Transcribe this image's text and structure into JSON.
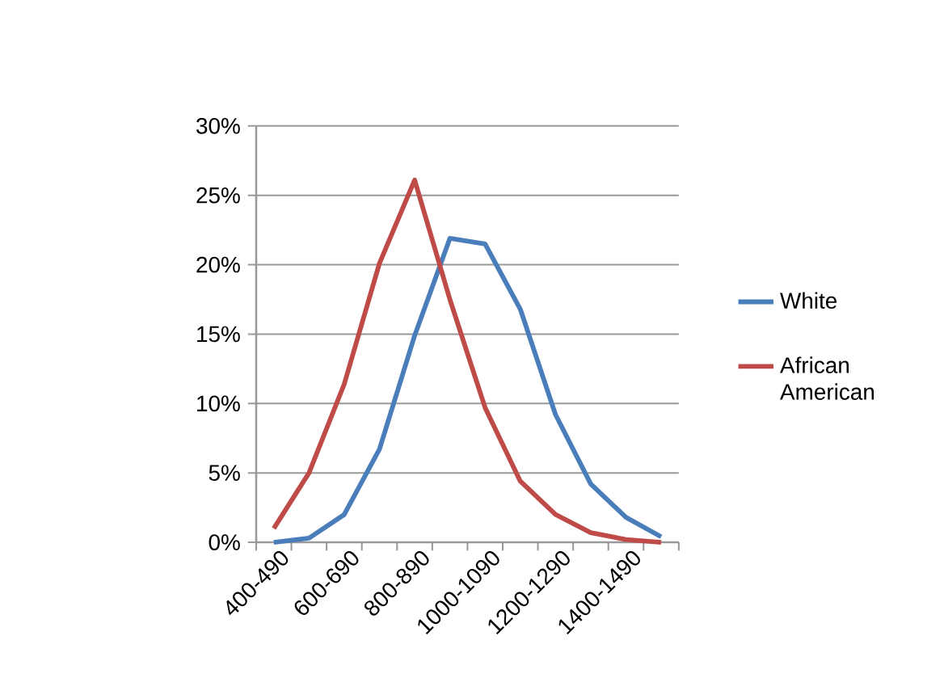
{
  "chart_data": {
    "type": "line",
    "categories": [
      "400-490",
      null,
      "600-690",
      null,
      "800-890",
      null,
      "1000-1090",
      null,
      "1200-1290",
      null,
      "1400-1490",
      null
    ],
    "series": [
      {
        "name": "White",
        "color": "#4a7ebb",
        "values": [
          0.0,
          0.3,
          2.0,
          6.7,
          14.9,
          21.9,
          21.5,
          16.8,
          9.2,
          4.2,
          1.8,
          0.4
        ]
      },
      {
        "name": "African American",
        "color": "#be4b48",
        "values": [
          1.0,
          5.0,
          11.4,
          20.1,
          26.1,
          17.5,
          9.7,
          4.4,
          2.0,
          0.7,
          0.2,
          0.0
        ]
      }
    ],
    "ylim": [
      0,
      30
    ],
    "yticks": [
      {
        "value": 0,
        "label": "0%"
      },
      {
        "value": 5,
        "label": "5%"
      },
      {
        "value": 10,
        "label": "10%"
      },
      {
        "value": 15,
        "label": "15%"
      },
      {
        "value": 20,
        "label": "20%"
      },
      {
        "value": 25,
        "label": "25%"
      },
      {
        "value": 30,
        "label": "30%"
      }
    ],
    "grid": "y",
    "legend": "right",
    "marker": "none",
    "line_style": "solid"
  }
}
